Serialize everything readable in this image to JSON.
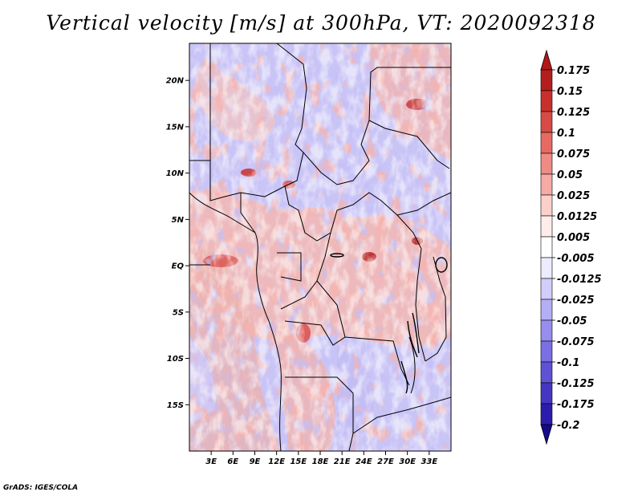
{
  "title": "Vertical velocity [m/s] at 300hPa, VT: 2020092318",
  "credit": "GrADS: IGES/COLA",
  "map": {
    "lon_range": [
      0,
      36
    ],
    "lat_range": [
      -20,
      24
    ],
    "lat_ticks": [
      "20N",
      "15N",
      "10N",
      "5N",
      "EQ",
      "5S",
      "10S",
      "15S"
    ],
    "lat_tick_values": [
      20,
      15,
      10,
      5,
      0,
      -5,
      -10,
      -15
    ],
    "lon_ticks": [
      "3E",
      "6E",
      "9E",
      "12E",
      "15E",
      "18E",
      "21E",
      "24E",
      "27E",
      "30E",
      "33E"
    ],
    "lon_tick_values": [
      3,
      6,
      9,
      12,
      15,
      18,
      21,
      24,
      27,
      30,
      33
    ]
  },
  "colorbar": {
    "labels": [
      "0.175",
      "0.15",
      "0.125",
      "0.1",
      "0.075",
      "0.05",
      "0.025",
      "0.0125",
      "0.005",
      "-0.005",
      "-0.0125",
      "-0.025",
      "-0.05",
      "-0.075",
      "-0.1",
      "-0.125",
      "-0.175",
      "-0.2"
    ],
    "colors": [
      "#9c0f0f",
      "#b41e1e",
      "#c8302e",
      "#d84a45",
      "#e66a62",
      "#ee8b83",
      "#f5aaa3",
      "#fbcfca",
      "#ffecea",
      "#ffffff",
      "#ecebff",
      "#d2cdfb",
      "#b4aef5",
      "#968ded",
      "#7a6fe3",
      "#5f52d6",
      "#4536c4",
      "#2b1cae",
      "#170d94",
      "#6a0d0d"
    ],
    "top_color": "#b21818",
    "bottom_color": "#150a8a"
  }
}
